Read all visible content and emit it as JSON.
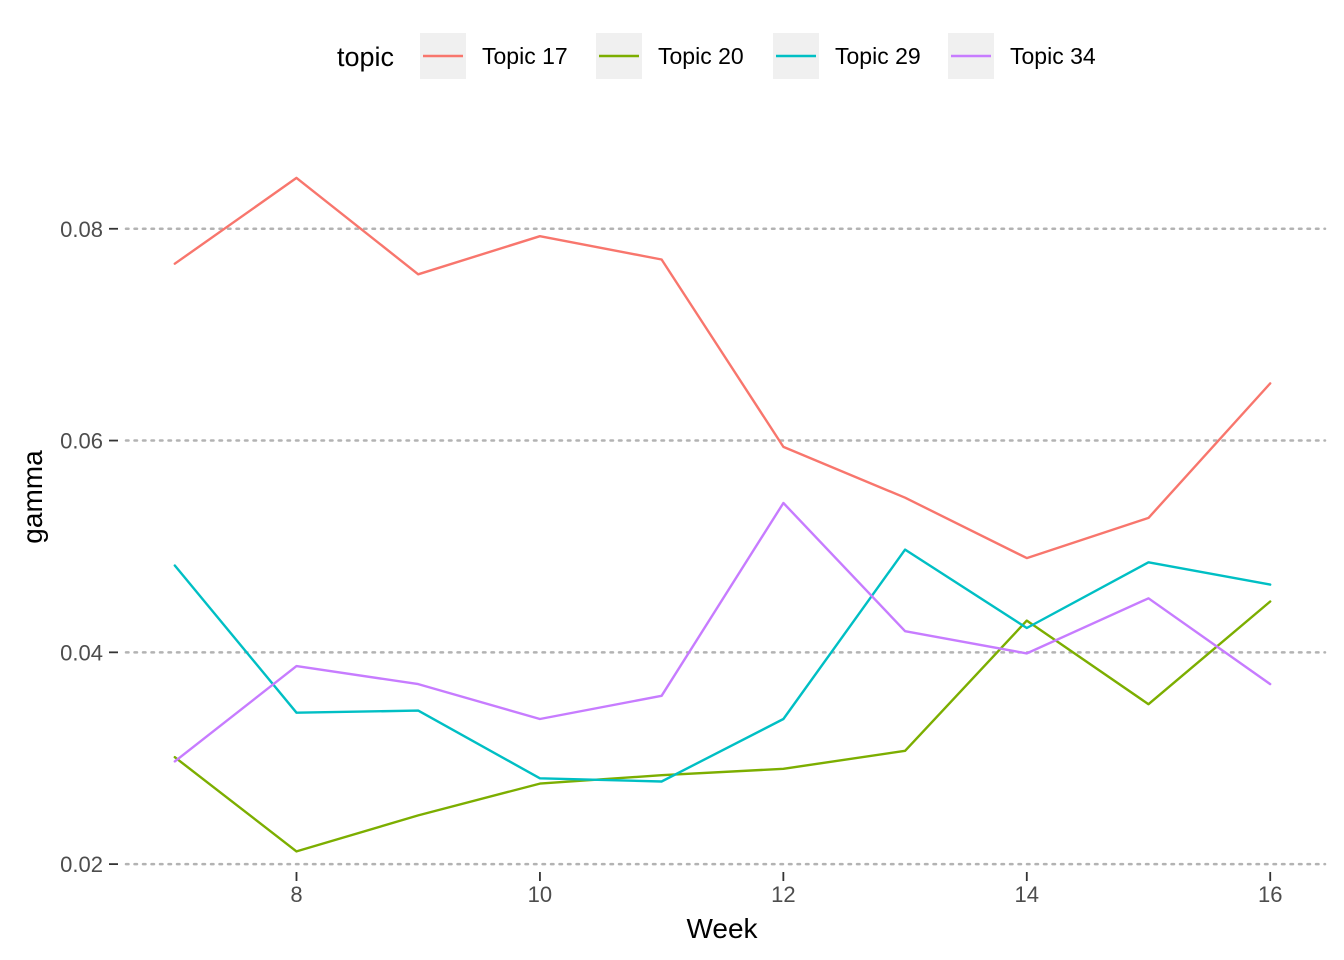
{
  "chart_data": {
    "type": "line",
    "title": "",
    "xlabel": "Week",
    "ylabel": "gamma",
    "x": [
      7,
      8,
      9,
      10,
      11,
      12,
      13,
      14,
      15,
      16
    ],
    "xlim": [
      6.55,
      16.45
    ],
    "ylim": [
      0.0185,
      0.0898
    ],
    "x_ticks": [
      8,
      10,
      12,
      14,
      16
    ],
    "x_tick_labels": [
      "8",
      "10",
      "12",
      "14",
      "16"
    ],
    "y_ticks": [
      0.02,
      0.04,
      0.06,
      0.08
    ],
    "y_tick_labels": [
      "0.02",
      "0.04",
      "0.06",
      "0.08"
    ],
    "grid": "horizontal major dotted",
    "legend": {
      "title": "topic",
      "placement": "top"
    },
    "series": [
      {
        "name": "Topic 17",
        "color": "#F8766D",
        "values": [
          0.0767,
          0.0848,
          0.0757,
          0.0793,
          0.0771,
          0.0594,
          0.0546,
          0.0489,
          0.0527,
          0.0654
        ]
      },
      {
        "name": "Topic 20",
        "color": "#7CAE00",
        "values": [
          0.0301,
          0.0212,
          0.0246,
          0.0276,
          0.0284,
          0.029,
          0.0307,
          0.043,
          0.0351,
          0.0448
        ]
      },
      {
        "name": "Topic 29",
        "color": "#00BFC4",
        "values": [
          0.0482,
          0.0343,
          0.0345,
          0.0281,
          0.0278,
          0.0337,
          0.0497,
          0.0423,
          0.0485,
          0.0464
        ]
      },
      {
        "name": "Topic 34",
        "color": "#C77CFF",
        "values": [
          0.0297,
          0.0387,
          0.037,
          0.0337,
          0.0359,
          0.0541,
          0.042,
          0.0399,
          0.0451,
          0.037
        ]
      }
    ]
  }
}
